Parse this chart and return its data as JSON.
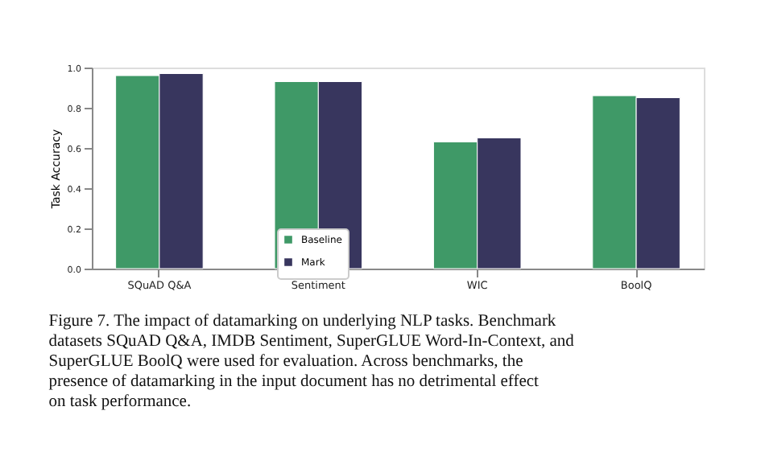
{
  "chart_data": {
    "type": "bar",
    "categories": [
      "SQuAD Q&A",
      "Sentiment",
      "WIC",
      "BoolQ"
    ],
    "series": [
      {
        "name": "Baseline",
        "color": "#3f9967",
        "values": [
          0.96,
          0.93,
          0.63,
          0.86
        ]
      },
      {
        "name": "Mark",
        "color": "#38365e",
        "values": [
          0.97,
          0.93,
          0.65,
          0.85
        ]
      }
    ],
    "ylabel": "Task Accuracy",
    "ylim": [
      0,
      1.0
    ],
    "yticks": [
      {
        "value": 0,
        "label": "0.0"
      },
      {
        "value": 0.2,
        "label": "0.2"
      },
      {
        "value": 0.4,
        "label": "0.4"
      },
      {
        "value": 0.6,
        "label": "0.6"
      },
      {
        "value": 0.8,
        "label": "0.8"
      },
      {
        "value": 1,
        "label": "1.0"
      }
    ],
    "grid": false,
    "legend": "bottom",
    "annotations": [
      "Figure 7. The impact of datamarking on underlying NLP tasks. Benchmark datasets SQuAD Q&A, IMDB Sentiment, SuperGLUE Word-In-Context, and SuperGLUE BoolQ were used for evaluation. Across benchmarks, the presence of datamarking in the input document has no detrimental effect on task performance."
    ]
  }
}
